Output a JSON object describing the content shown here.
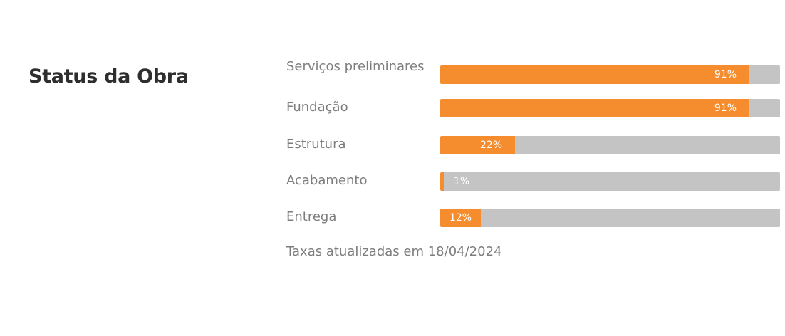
{
  "section": {
    "title": "Status da Obra"
  },
  "progress_items": [
    {
      "label": "Serviços preliminares",
      "percent": 91,
      "percent_text": "91%"
    },
    {
      "label": "Fundação",
      "percent": 91,
      "percent_text": "91%"
    },
    {
      "label": "Estrutura",
      "percent": 22,
      "percent_text": "22%"
    },
    {
      "label": "Acabamento",
      "percent": 1,
      "percent_text": "1%"
    },
    {
      "label": "Entrega",
      "percent": 12,
      "percent_text": "12%"
    }
  ],
  "footnote": "Taxas atualizadas em 18/04/2024",
  "colors": {
    "fill": "#f58c2d",
    "track": "#c4c4c4",
    "title": "#2e2e2e",
    "label": "#7d7d7d"
  }
}
